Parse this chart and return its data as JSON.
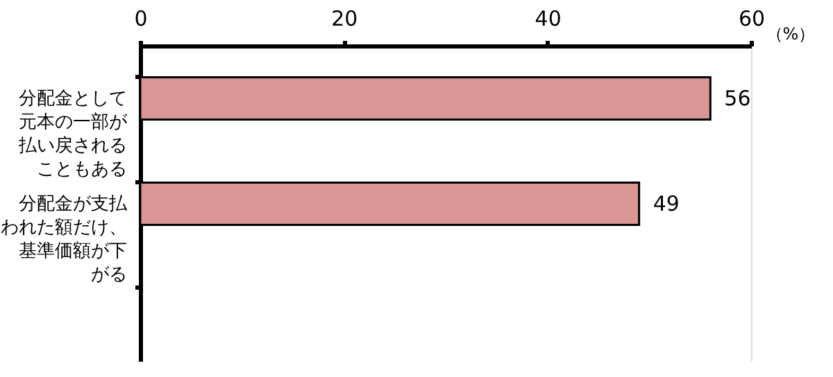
{
  "chart_data": {
    "type": "bar",
    "orientation": "horizontal",
    "xlabel": "（%）",
    "categories": [
      "分配金として元本の一部が払い戻されることもある",
      "分配金が支払われた額だけ、基準価額が下がる",
      null
    ],
    "values": [
      56,
      49,
      null
    ],
    "color": "#d99694",
    "xlim": [
      0,
      60
    ],
    "xticks": [
      0,
      20,
      40,
      60
    ],
    "data_labels": true,
    "grid": false
  }
}
